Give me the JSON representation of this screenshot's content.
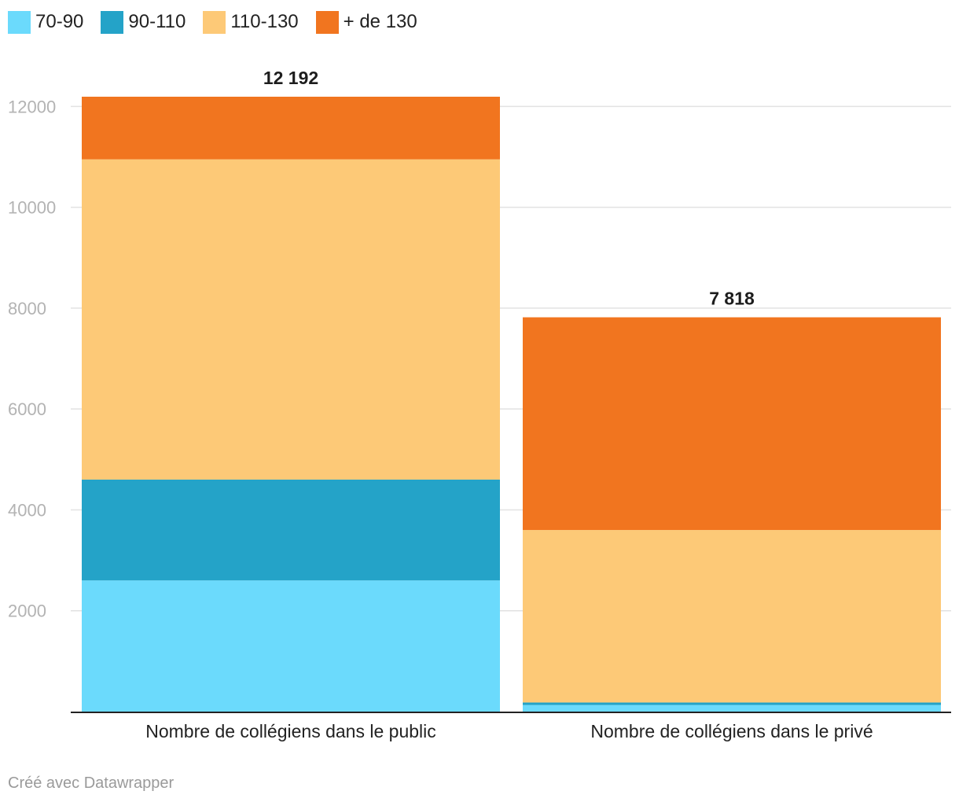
{
  "chart_data": {
    "type": "bar",
    "stacked": true,
    "categories": [
      "Nombre de collégiens dans le public",
      "Nombre de collégiens dans le privé"
    ],
    "series": [
      {
        "name": "70-90",
        "color": "#6bdafc",
        "values": [
          2600,
          130
        ]
      },
      {
        "name": "90-110",
        "color": "#24a3c8",
        "values": [
          2000,
          50
        ]
      },
      {
        "name": "110-130",
        "color": "#fdc977",
        "values": [
          6350,
          3420
        ]
      },
      {
        "name": "+ de 130",
        "color": "#f1751f",
        "values": [
          1242,
          4218
        ]
      }
    ],
    "totals": [
      12192,
      7818
    ],
    "total_labels": [
      "12 192",
      "7 818"
    ],
    "yticks": [
      2000,
      4000,
      6000,
      8000,
      10000,
      12000
    ],
    "ylim": [
      0,
      12192
    ],
    "grid": true,
    "legend": "top-left"
  },
  "footer": {
    "credit": "Créé avec Datawrapper"
  }
}
